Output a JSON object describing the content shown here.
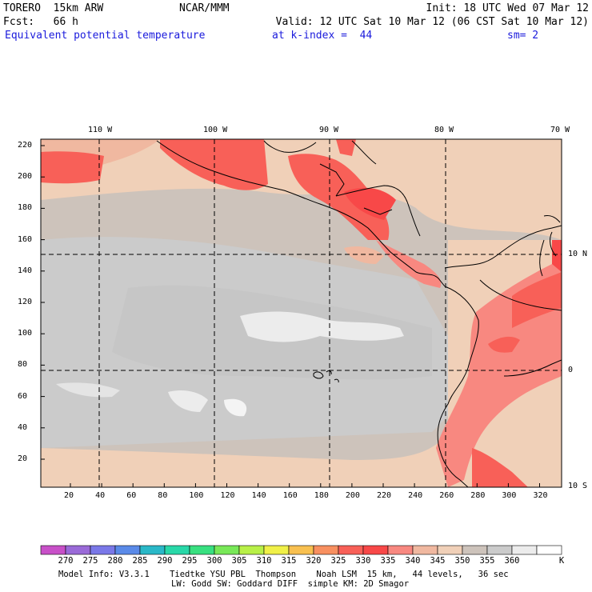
{
  "header": {
    "model": "TORERO  15km ARW",
    "org": "NCAR/MMM",
    "init": "Init: 18 UTC Wed 07 Mar 12",
    "fcst": "Fcst:   66 h",
    "valid": "Valid: 12 UTC Sat 10 Mar 12 (06 CST Sat 10 Mar 12)",
    "field": "Equivalent potential temperature",
    "level": "at k-index =  44",
    "smooth": "sm= 2"
  },
  "map": {
    "lon_labels": [
      "110 W",
      "100 W",
      "90 W",
      "80 W",
      "70 W"
    ],
    "lat_labels": [
      "10 N",
      "0",
      "10 S"
    ],
    "y_ticks": [
      "220",
      "200",
      "180",
      "160",
      "140",
      "120",
      "100",
      "80",
      "60",
      "40",
      "20"
    ],
    "x_ticks": [
      "20",
      "40",
      "60",
      "80",
      "100",
      "120",
      "140",
      "160",
      "180",
      "200",
      "220",
      "240",
      "260",
      "280",
      "300",
      "320"
    ]
  },
  "colorbar": {
    "labels": [
      "270",
      "275",
      "280",
      "285",
      "290",
      "295",
      "300",
      "305",
      "310",
      "315",
      "320",
      "325",
      "330",
      "335",
      "340",
      "345",
      "350",
      "355",
      "360"
    ],
    "unit": "K",
    "colors": [
      "#c850c8",
      "#9a6ad8",
      "#7a78e8",
      "#5a8ae8",
      "#2ab8c8",
      "#28d8a8",
      "#38e080",
      "#78e858",
      "#b8f048",
      "#f0f048",
      "#f8c050",
      "#f89060",
      "#f86058",
      "#f84848",
      "#f88880",
      "#f0b8a0",
      "#f0d0b8",
      "#cdc3bb",
      "#cbcbcb",
      "#ececec",
      "#ffffff"
    ]
  },
  "footer": {
    "line1": "Model Info: V3.3.1    Tiedtke YSU PBL  Thompson    Noah LSM  15 km,   44 levels,   36 sec",
    "line2": "LW: Godd SW: Goddard DIFF  simple KM: 2D Smagor"
  }
}
